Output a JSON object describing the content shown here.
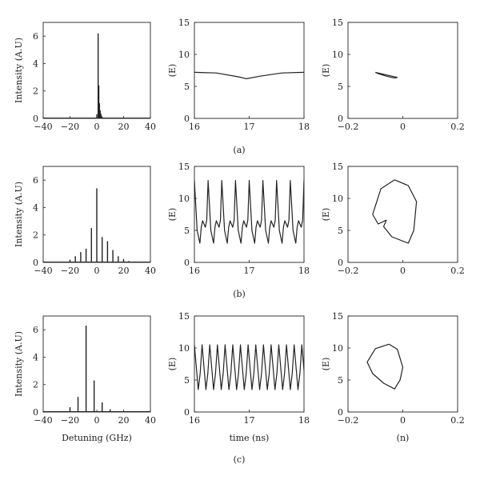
{
  "chart_data": [
    {
      "type": "bar",
      "panel": "a-spectrum",
      "ylabel": "Intensity (A.U)",
      "xlabel": "",
      "xlim": [
        -40,
        40
      ],
      "ylim": [
        0,
        7
      ],
      "xticks": [
        -40,
        -20,
        0,
        20,
        40
      ],
      "yticks": [
        0,
        2,
        4,
        6
      ],
      "x": [
        0,
        1,
        1.5,
        2,
        2.5,
        3,
        3.5,
        4
      ],
      "values": [
        0.3,
        6.2,
        2.4,
        1.1,
        0.6,
        0.35,
        0.2,
        0.1
      ]
    },
    {
      "type": "line",
      "panel": "a-time",
      "ylabel": "(E)",
      "xlabel": "",
      "xlim": [
        16,
        18
      ],
      "ylim": [
        0,
        15
      ],
      "xticks": [
        16,
        17,
        18
      ],
      "yticks": [
        0,
        5,
        10,
        15
      ],
      "x": [
        16,
        16.4,
        16.8,
        16.95,
        17.2,
        17.6,
        18
      ],
      "values": [
        7.2,
        7.1,
        6.5,
        6.2,
        6.6,
        7.1,
        7.2
      ]
    },
    {
      "type": "line",
      "panel": "a-phase",
      "ylabel": "(E)",
      "xlabel": "",
      "xlim": [
        -0.2,
        0.2
      ],
      "ylim": [
        0,
        15
      ],
      "xticks": [
        -0.2,
        0,
        0.2
      ],
      "yticks": [
        0,
        5,
        10,
        15
      ],
      "x": [
        -0.1,
        -0.07,
        -0.04,
        -0.02,
        -0.03,
        -0.06,
        -0.09,
        -0.1
      ],
      "values": [
        7.2,
        6.9,
        6.6,
        6.4,
        6.3,
        6.6,
        7.0,
        7.2
      ]
    },
    {
      "type": "bar",
      "panel": "b-spectrum",
      "ylabel": "Intensity (A.U)",
      "xlabel": "",
      "xlim": [
        -40,
        40
      ],
      "ylim": [
        0,
        7
      ],
      "xticks": [
        -40,
        -20,
        0,
        20,
        40
      ],
      "yticks": [
        0,
        2,
        4,
        6
      ],
      "x": [
        -24,
        -20,
        -16,
        -12,
        -8,
        -4,
        0,
        4,
        8,
        12,
        16,
        20,
        24
      ],
      "values": [
        0.05,
        0.2,
        0.45,
        0.75,
        1.0,
        2.5,
        5.4,
        1.85,
        1.55,
        0.9,
        0.45,
        0.25,
        0.1
      ]
    },
    {
      "type": "line",
      "panel": "b-time",
      "ylabel": "(E)",
      "xlabel": "",
      "xlim": [
        16,
        18
      ],
      "ylim": [
        0,
        15
      ],
      "xticks": [
        16,
        17,
        18
      ],
      "yticks": [
        0,
        5,
        10,
        15
      ],
      "period_ns": 0.25,
      "x": [
        0,
        0.05,
        0.1,
        0.125,
        0.15,
        0.2,
        0.225,
        0.25
      ],
      "values": [
        12.8,
        5.0,
        3.0,
        5.5,
        6.5,
        5.5,
        6.6,
        12.8
      ]
    },
    {
      "type": "line",
      "panel": "b-phase",
      "ylabel": "(E)",
      "xlabel": "",
      "xlim": [
        -0.2,
        0.2
      ],
      "ylim": [
        0,
        15
      ],
      "xticks": [
        -0.2,
        0,
        0.2
      ],
      "yticks": [
        0,
        5,
        10,
        15
      ],
      "x": [
        -0.03,
        0.02,
        0.05,
        0.04,
        0.02,
        -0.04,
        -0.07,
        -0.06,
        -0.09,
        -0.11,
        -0.08,
        -0.03
      ],
      "values": [
        12.9,
        12.0,
        9.5,
        5.0,
        3.0,
        4.0,
        5.6,
        6.6,
        6.0,
        7.5,
        11.5,
        12.9
      ]
    },
    {
      "type": "bar",
      "panel": "c-spectrum",
      "ylabel": "Intensity (A.U)",
      "xlabel": "Detuning (GHz)",
      "xlim": [
        -40,
        40
      ],
      "ylim": [
        0,
        7
      ],
      "xticks": [
        -40,
        -20,
        0,
        20,
        40
      ],
      "yticks": [
        0,
        2,
        4,
        6
      ],
      "x": [
        -26,
        -20,
        -14,
        -8,
        -2,
        4,
        10,
        16
      ],
      "values": [
        0.05,
        0.35,
        1.1,
        6.3,
        2.3,
        0.7,
        0.2,
        0.05
      ]
    },
    {
      "type": "line",
      "panel": "c-time",
      "ylabel": "(E)",
      "xlabel": "time (ns)",
      "xlim": [
        16,
        18
      ],
      "ylim": [
        0,
        15
      ],
      "xticks": [
        16,
        17,
        18
      ],
      "yticks": [
        0,
        5,
        10,
        15
      ],
      "period_ns": 0.14,
      "x": [
        0,
        0.035,
        0.07,
        0.105,
        0.14
      ],
      "values": [
        10.5,
        7.0,
        3.5,
        6.0,
        10.5
      ]
    },
    {
      "type": "line",
      "panel": "c-phase",
      "ylabel": "(E)",
      "xlabel": "(n)",
      "xlim": [
        -0.2,
        0.2
      ],
      "ylim": [
        0,
        15
      ],
      "xticks": [
        -0.2,
        0,
        0.2
      ],
      "yticks": [
        0,
        5,
        10,
        15
      ],
      "x": [
        -0.05,
        -0.02,
        0.0,
        -0.01,
        -0.03,
        -0.07,
        -0.11,
        -0.13,
        -0.1,
        -0.05
      ],
      "values": [
        10.6,
        9.8,
        7.0,
        5.0,
        3.6,
        4.5,
        6.0,
        7.8,
        9.9,
        10.6
      ]
    }
  ],
  "row_captions": [
    "(a)",
    "(b)",
    "(c)"
  ]
}
